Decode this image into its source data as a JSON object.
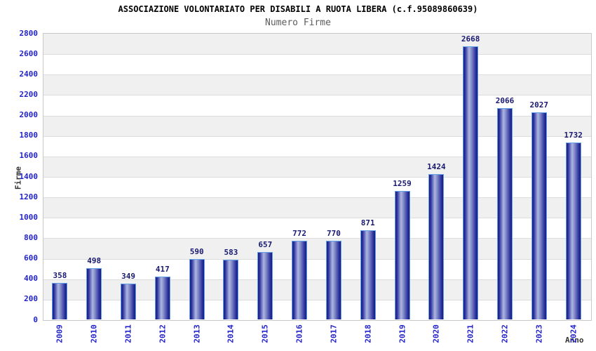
{
  "header": {
    "title": "ASSOCIAZIONE VOLONTARIATO PER DISABILI A RUOTA LIBERA (c.f.95089860639)",
    "subtitle": "Numero Firme"
  },
  "chart_data": {
    "type": "bar",
    "title": "ASSOCIAZIONE VOLONTARIATO PER DISABILI A RUOTA LIBERA (c.f.95089860639)",
    "subtitle": "Numero Firme",
    "xlabel": "Anno",
    "ylabel": "Firme",
    "categories": [
      "2009",
      "2010",
      "2011",
      "2012",
      "2013",
      "2014",
      "2015",
      "2016",
      "2017",
      "2018",
      "2019",
      "2020",
      "2021",
      "2022",
      "2023",
      "2024"
    ],
    "values": [
      358,
      498,
      349,
      417,
      590,
      583,
      657,
      772,
      770,
      871,
      1259,
      1424,
      2668,
      2066,
      2027,
      1732
    ],
    "ylim": [
      0,
      2800
    ],
    "ytick_step": 200,
    "yticks": [
      0,
      200,
      400,
      600,
      800,
      1000,
      1200,
      1400,
      1600,
      1800,
      2000,
      2200,
      2400,
      2600,
      2800
    ],
    "grid": true,
    "legend": "none",
    "colors": {
      "bar_edge": "#181c7e",
      "bar_mid": "#2e35a0",
      "bar_highlight": "#aeb6e2",
      "bar_shadow": "#8089c8",
      "bar_border": "#63a0e6",
      "tick_label": "#2323cc",
      "value_label": "#191970",
      "band_gray": "#f0f0f0",
      "band_white": "#ffffff",
      "gridline": "#dcdcdc",
      "plot_border": "#c9c9c9",
      "title_color": "#000000",
      "subtitle_color": "#5c5c5c",
      "axis_title_color": "#333333"
    }
  }
}
